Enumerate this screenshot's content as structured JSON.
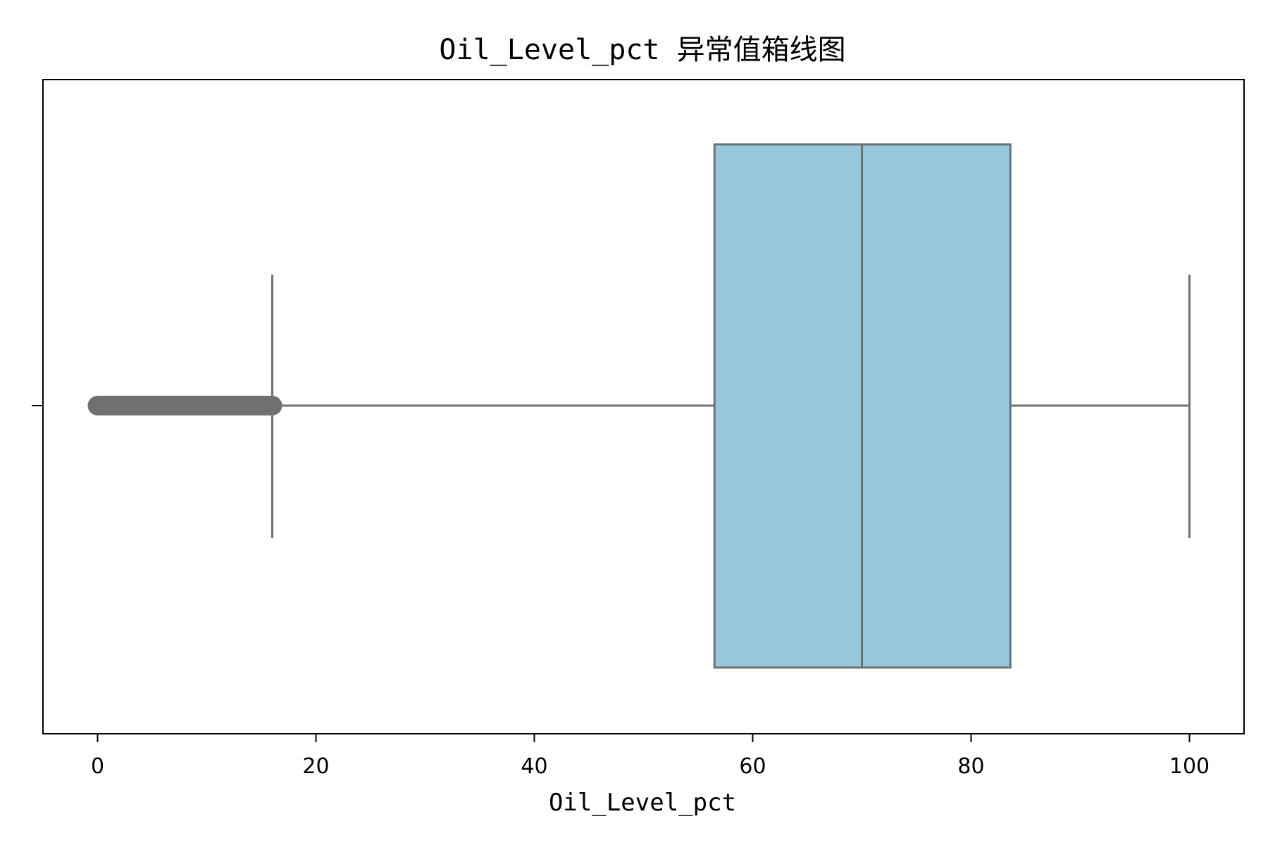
{
  "chart_data": {
    "type": "box",
    "title": "Oil_Level_pct 异常值箱线图",
    "xlabel": "Oil_Level_pct",
    "ylabel": "",
    "xlim": [
      -5,
      105
    ],
    "xticks": [
      0,
      20,
      40,
      60,
      80,
      100
    ],
    "tick_labels": [
      "0",
      "20",
      "40",
      "60",
      "80",
      "100"
    ],
    "grid": false,
    "box": {
      "whisker_low": 16.0,
      "q1": 56.5,
      "median": 70.0,
      "q3": 83.6,
      "whisker_high": 100.0,
      "outliers_range": [
        0.0,
        16.0
      ],
      "fill_color": "#96c8de",
      "line_color": "#707070"
    }
  }
}
